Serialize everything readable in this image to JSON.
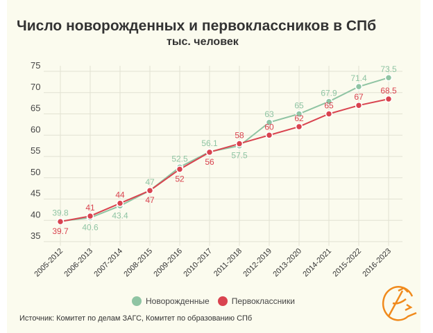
{
  "chart_data": {
    "type": "line",
    "title": "Число новорожденных и первоклассников в СПб",
    "subtitle": "тыс. человек",
    "categories": [
      "2005-2012",
      "2006-2013",
      "2007-2014",
      "2008-2015",
      "2009-2016",
      "2010-2017",
      "2011-2018",
      "2012-2019",
      "2013-2020",
      "2014-2021",
      "2015-2022",
      "2016-2023"
    ],
    "ylim": [
      35,
      75
    ],
    "yticks": [
      35,
      40,
      45,
      50,
      55,
      60,
      65,
      70,
      75
    ],
    "grid": true,
    "legend": "bottom",
    "series": [
      {
        "name": "Новорожденные",
        "color": "#8fc4a3",
        "values": [
          39.8,
          40.6,
          43.4,
          47,
          52.5,
          56.1,
          57.5,
          63,
          65,
          67.9,
          71.4,
          73.5
        ]
      },
      {
        "name": "Первоклассники",
        "color": "#d9434f",
        "values": [
          39.7,
          41,
          44,
          47,
          52,
          56,
          58,
          60,
          62,
          65,
          67,
          68.5
        ]
      }
    ]
  },
  "source": "Источник: Комитет по делам ЗАГС, Комитет по образованию СПб",
  "logo": {
    "color": "#f08a1c"
  }
}
